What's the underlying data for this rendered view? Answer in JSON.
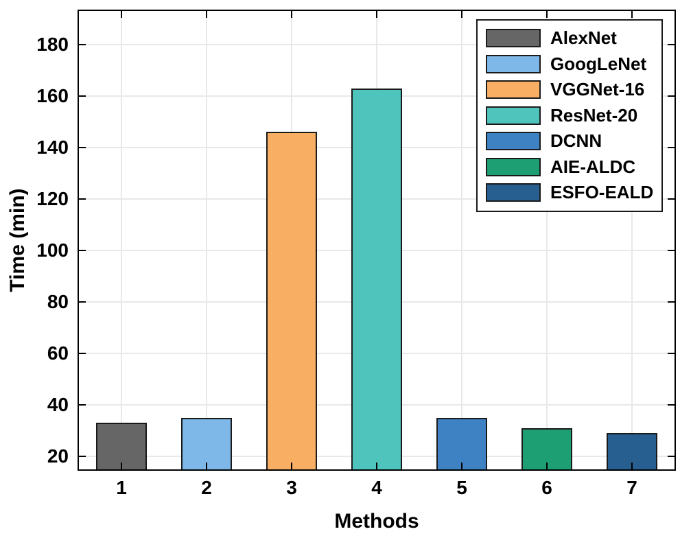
{
  "chart_data": {
    "type": "bar",
    "title": "",
    "xlabel": "Methods",
    "ylabel": "Time (min)",
    "categories": [
      "1",
      "2",
      "3",
      "4",
      "5",
      "6",
      "7"
    ],
    "series": [
      {
        "label": "AlexNet",
        "value": 33,
        "color": "#666666"
      },
      {
        "label": "GoogLeNet",
        "value": 35,
        "color": "#7EB8E8"
      },
      {
        "label": "VGGNet-16",
        "value": 146,
        "color": "#F8AF63"
      },
      {
        "label": "ResNet-20",
        "value": 163,
        "color": "#4FC4BC"
      },
      {
        "label": "DCNN",
        "value": 35,
        "color": "#3F82C4"
      },
      {
        "label": "AIE-ALDC",
        "value": 31,
        "color": "#1E9E73"
      },
      {
        "label": "ESFO-EALD",
        "value": 29,
        "color": "#285F91"
      }
    ],
    "ylim": [
      15,
      193
    ],
    "yticks": [
      20,
      40,
      60,
      80,
      100,
      120,
      140,
      160,
      180
    ],
    "bar_width_fraction": 0.6,
    "grid": true,
    "grid_color": "#E8E8E8",
    "axis_color": "#000000",
    "bar_edge_color": "#1a1a1a",
    "legend_position": "top-right"
  }
}
